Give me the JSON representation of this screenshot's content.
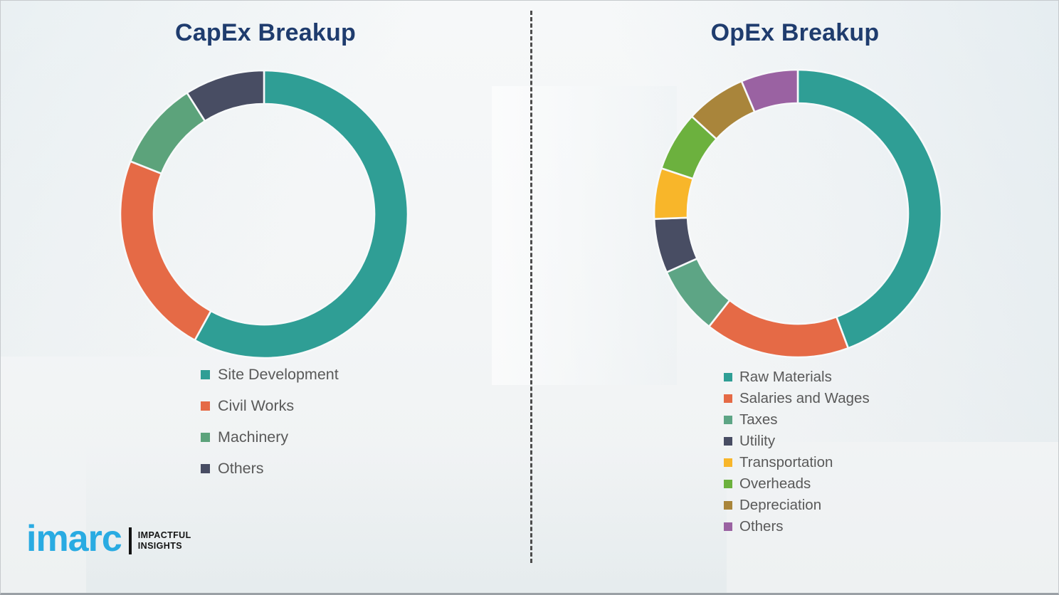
{
  "page": {
    "background_color": "#f3f5f6",
    "divider_style": "vertical-dashed",
    "divider_color": "#4d4d4d",
    "title_color": "#1f3c6e",
    "legend_text_color": "#595959"
  },
  "logo": {
    "brand": "imarc",
    "brand_color": "#29abe2",
    "tagline_line1": "IMPACTFUL",
    "tagline_line2": "INSIGHTS"
  },
  "chart_data": [
    {
      "type": "pie",
      "variant": "donut",
      "title": "CapEx Breakup",
      "legend_position": "below-left",
      "direction": "clockwise",
      "start_angle_deg": 0,
      "units": "percent-estimated",
      "labels": [
        "Site Development",
        "Civil Works",
        "Machinery",
        "Others"
      ],
      "values": [
        58,
        23,
        10,
        9
      ],
      "colors": [
        "#2f9e95",
        "#e56a46",
        "#5ca37b",
        "#484d63"
      ]
    },
    {
      "type": "pie",
      "variant": "donut",
      "title": "OpEx Breakup",
      "legend_position": "below-left",
      "direction": "clockwise",
      "start_angle_deg": 0,
      "units": "percent-estimated",
      "labels": [
        "Raw Materials",
        "Salaries and Wages",
        "Taxes",
        "Utility",
        "Transportation",
        "Overheads",
        "Depreciation",
        "Others"
      ],
      "values": [
        44.3,
        16.3,
        7.7,
        6.1,
        5.7,
        6.7,
        6.8,
        6.4
      ],
      "colors": [
        "#2f9e95",
        "#e56a46",
        "#5da585",
        "#484d63",
        "#f8b62a",
        "#6cb13e",
        "#a9853b",
        "#9a62a2"
      ]
    }
  ]
}
